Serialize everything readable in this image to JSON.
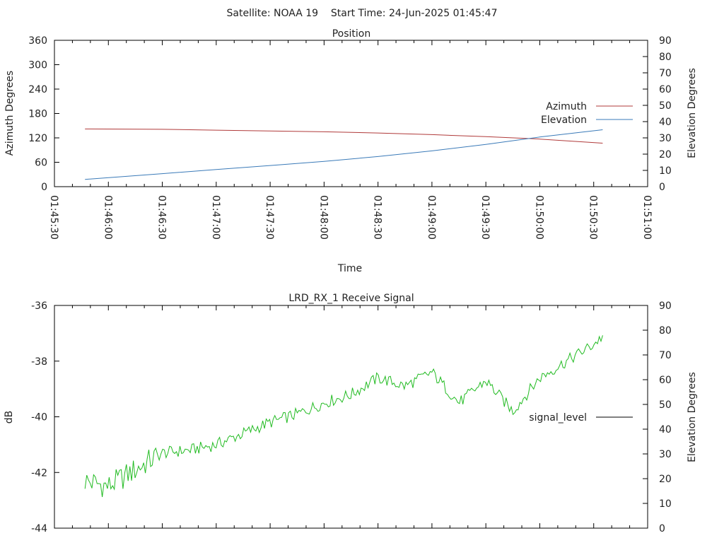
{
  "header": {
    "title": "Satellite: NOAA 19    Start Time: 24-Jun-2025 01:45:47"
  },
  "chart_data": [
    {
      "type": "line",
      "title": "Position",
      "xlabel": "Time",
      "ylabel": "Azimuth Degrees",
      "y2label": "Elevation Degrees",
      "x_ticks": [
        "01:45:30",
        "01:46:00",
        "01:46:30",
        "01:47:00",
        "01:47:30",
        "01:48:00",
        "01:48:30",
        "01:49:00",
        "01:49:30",
        "01:50:00",
        "01:50:30",
        "01:51:00"
      ],
      "xlim": [
        "01:45:30",
        "01:51:00"
      ],
      "ylim": [
        0,
        360
      ],
      "y_ticks": [
        "0",
        "60",
        "120",
        "180",
        "240",
        "300",
        "360"
      ],
      "y2lim": [
        0,
        90
      ],
      "y2_ticks": [
        "0",
        "10",
        "20",
        "30",
        "40",
        "50",
        "60",
        "70",
        "80",
        "90"
      ],
      "legend_position": "right",
      "series": [
        {
          "name": "Azimuth",
          "axis": "left",
          "color": "#b03a3a",
          "x": [
            "01:45:47",
            "01:46:30",
            "01:47:00",
            "01:47:30",
            "01:48:00",
            "01:48:30",
            "01:49:00",
            "01:49:30",
            "01:50:00",
            "01:50:35"
          ],
          "values": [
            142,
            141,
            139,
            137,
            135,
            132,
            128,
            123,
            117,
            107
          ]
        },
        {
          "name": "Elevation",
          "axis": "right",
          "color": "#3a7ab8",
          "x": [
            "01:45:47",
            "01:46:30",
            "01:47:00",
            "01:47:30",
            "01:48:00",
            "01:48:30",
            "01:49:00",
            "01:49:30",
            "01:50:00",
            "01:50:35"
          ],
          "values": [
            4.5,
            8,
            10.5,
            13,
            15.5,
            18.5,
            22,
            26,
            30.5,
            35
          ]
        }
      ]
    },
    {
      "type": "line",
      "title": "LRD_RX_1 Receive Signal",
      "ylabel": "dB",
      "y2label": "Elevation Degrees",
      "xlim": [
        "01:45:30",
        "01:51:00"
      ],
      "ylim": [
        -44,
        -36
      ],
      "y_ticks": [
        "-44",
        "-42",
        "-40",
        "-38",
        "-36"
      ],
      "y2lim": [
        0,
        90
      ],
      "y2_ticks": [
        "0",
        "10",
        "20",
        "30",
        "40",
        "50",
        "60",
        "70",
        "80",
        "90"
      ],
      "legend_position": "right",
      "legend": [
        "signal_level"
      ],
      "series": [
        {
          "name": "signal_level",
          "axis": "left",
          "color": "#22bb22",
          "x": [
            "01:45:47",
            "01:46:00",
            "01:46:15",
            "01:46:30",
            "01:46:45",
            "01:47:00",
            "01:47:15",
            "01:47:30",
            "01:47:45",
            "01:48:00",
            "01:48:15",
            "01:48:30",
            "01:48:45",
            "01:49:00",
            "01:49:15",
            "01:49:30",
            "01:49:45",
            "01:50:00",
            "01:50:15",
            "01:50:30",
            "01:50:35"
          ],
          "values": [
            -42.3,
            -42.5,
            -41.9,
            -41.3,
            -41.2,
            -41.0,
            -40.6,
            -40.2,
            -39.9,
            -39.5,
            -39.2,
            -38.6,
            -38.9,
            -38.4,
            -39.5,
            -38.7,
            -39.8,
            -38.6,
            -38.0,
            -37.4,
            -37.1
          ]
        }
      ]
    }
  ]
}
